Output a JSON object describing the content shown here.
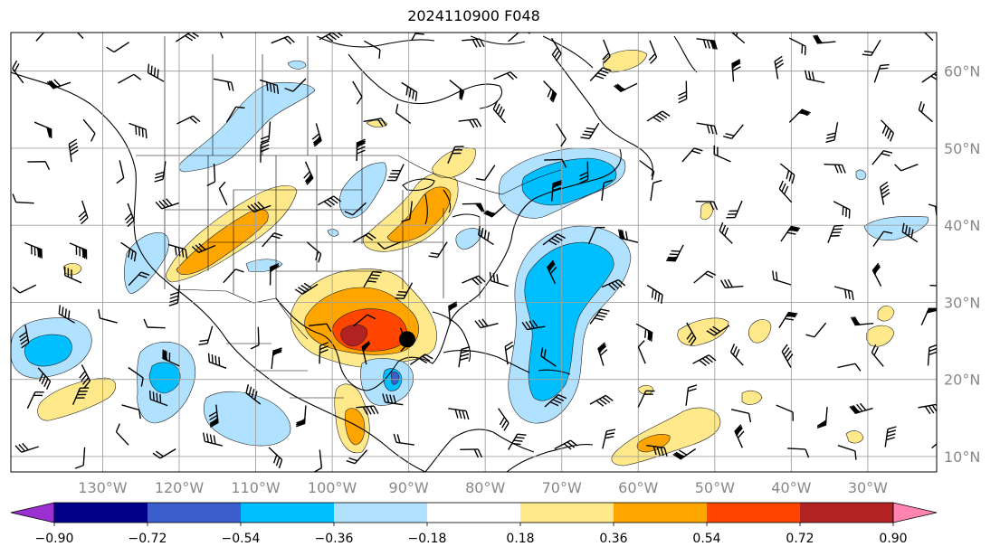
{
  "title": "2024110900 F048",
  "map": {
    "lon_min": -142,
    "lon_max": -21,
    "lat_min": 8,
    "lat_max": 65,
    "lon_ticks": [
      {
        "lon": -130,
        "label": "130°W"
      },
      {
        "lon": -120,
        "label": "120°W"
      },
      {
        "lon": -110,
        "label": "110°W"
      },
      {
        "lon": -100,
        "label": "100°W"
      },
      {
        "lon": -90,
        "label": "90°W"
      },
      {
        "lon": -80,
        "label": "80°W"
      },
      {
        "lon": -70,
        "label": "70°W"
      },
      {
        "lon": -60,
        "label": "60°W"
      },
      {
        "lon": -50,
        "label": "50°W"
      },
      {
        "lon": -40,
        "label": "40°W"
      },
      {
        "lon": -30,
        "label": "30°W"
      }
    ],
    "lat_ticks": [
      {
        "lat": 10,
        "label": "10°N"
      },
      {
        "lat": 20,
        "label": "20°N"
      },
      {
        "lat": 30,
        "label": "30°N"
      },
      {
        "lat": 40,
        "label": "40°N"
      },
      {
        "lat": 50,
        "label": "50°N"
      },
      {
        "lat": 60,
        "label": "60°N"
      }
    ],
    "storm_marker": {
      "lon": -90.2,
      "lat": 25.2
    }
  },
  "colorbar": {
    "colors": [
      "#9b30d0",
      "#00008b",
      "#3a5fcd",
      "#00bfff",
      "#b0e2ff",
      "#ffffff",
      "#ffe98a",
      "#ffa500",
      "#ff4500",
      "#b22222",
      "#ff85b0"
    ],
    "ticks": [
      "−0.90",
      "−0.72",
      "−0.54",
      "−0.36",
      "−0.18",
      "0.18",
      "0.36",
      "0.54",
      "0.72",
      "0.90"
    ]
  }
}
